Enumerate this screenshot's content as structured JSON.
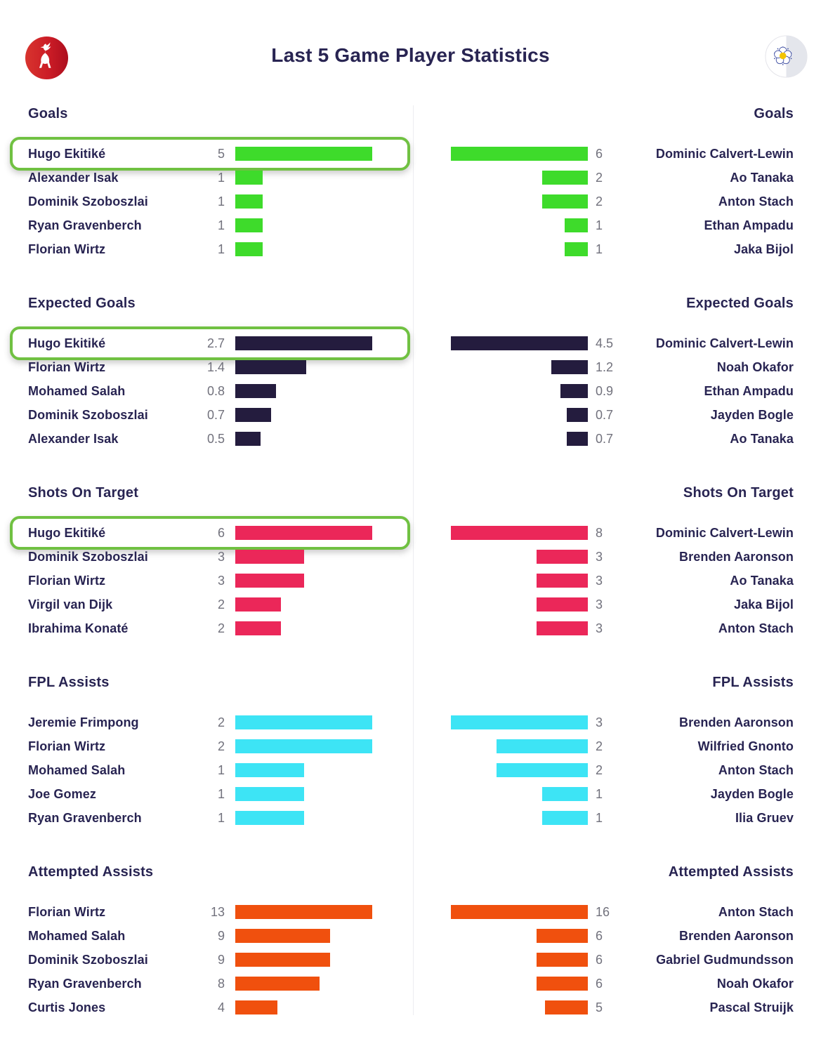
{
  "header": {
    "title": "Last 5 Game Player Statistics",
    "home_crest_icon": "liverpool-crest-icon",
    "away_crest_icon": "leeds-united-crest-icon"
  },
  "colors": {
    "goals_bar": "#3edb2b",
    "expected_goals_bar": "#241c3e",
    "shots_on_target_bar": "#eb2759",
    "fpl_assists_bar": "#3de4f5",
    "attempted_assists_bar": "#f0500e",
    "highlight_border": "#70c142",
    "name_text": "#282452",
    "value_text": "#71717c",
    "divider": "#ededf1"
  },
  "chart_data": [
    {
      "type": "bar",
      "title": "Goals",
      "bar_color": "#3edb2b",
      "left": [
        {
          "name": "Hugo Ekitiké",
          "value": 5,
          "highlight": true
        },
        {
          "name": "Alexander Isak",
          "value": 1
        },
        {
          "name": "Dominik Szoboszlai",
          "value": 1
        },
        {
          "name": "Ryan Gravenberch",
          "value": 1
        },
        {
          "name": "Florian Wirtz",
          "value": 1
        }
      ],
      "right": [
        {
          "name": "Dominic Calvert-Lewin",
          "value": 6
        },
        {
          "name": "Ao Tanaka",
          "value": 2
        },
        {
          "name": "Anton Stach",
          "value": 2
        },
        {
          "name": "Ethan Ampadu",
          "value": 1
        },
        {
          "name": "Jaka Bijol",
          "value": 1
        }
      ]
    },
    {
      "type": "bar",
      "title": "Expected Goals",
      "bar_color": "#241c3e",
      "left": [
        {
          "name": "Hugo Ekitiké",
          "value": 2.7,
          "highlight": true
        },
        {
          "name": "Florian Wirtz",
          "value": 1.4
        },
        {
          "name": "Mohamed Salah",
          "value": 0.8
        },
        {
          "name": "Dominik Szoboszlai",
          "value": 0.7
        },
        {
          "name": "Alexander Isak",
          "value": 0.5
        }
      ],
      "right": [
        {
          "name": "Dominic Calvert-Lewin",
          "value": 4.5
        },
        {
          "name": "Noah Okafor",
          "value": 1.2
        },
        {
          "name": "Ethan Ampadu",
          "value": 0.9
        },
        {
          "name": "Jayden Bogle",
          "value": 0.7
        },
        {
          "name": "Ao Tanaka",
          "value": 0.7
        }
      ]
    },
    {
      "type": "bar",
      "title": "Shots On Target",
      "bar_color": "#eb2759",
      "left": [
        {
          "name": "Hugo Ekitiké",
          "value": 6,
          "highlight": true
        },
        {
          "name": "Dominik Szoboszlai",
          "value": 3
        },
        {
          "name": "Florian Wirtz",
          "value": 3
        },
        {
          "name": "Virgil van Dijk",
          "value": 2
        },
        {
          "name": "Ibrahima Konaté",
          "value": 2
        }
      ],
      "right": [
        {
          "name": "Dominic Calvert-Lewin",
          "value": 8
        },
        {
          "name": "Brenden Aaronson",
          "value": 3
        },
        {
          "name": "Ao Tanaka",
          "value": 3
        },
        {
          "name": "Jaka Bijol",
          "value": 3
        },
        {
          "name": "Anton Stach",
          "value": 3
        }
      ]
    },
    {
      "type": "bar",
      "title": "FPL Assists",
      "bar_color": "#3de4f5",
      "left": [
        {
          "name": "Jeremie Frimpong",
          "value": 2
        },
        {
          "name": "Florian Wirtz",
          "value": 2
        },
        {
          "name": "Mohamed Salah",
          "value": 1
        },
        {
          "name": "Joe Gomez",
          "value": 1
        },
        {
          "name": "Ryan Gravenberch",
          "value": 1
        }
      ],
      "right": [
        {
          "name": "Brenden Aaronson",
          "value": 3
        },
        {
          "name": "Wilfried Gnonto",
          "value": 2
        },
        {
          "name": "Anton Stach",
          "value": 2
        },
        {
          "name": "Jayden Bogle",
          "value": 1
        },
        {
          "name": "Ilia Gruev",
          "value": 1
        }
      ]
    },
    {
      "type": "bar",
      "title": "Attempted Assists",
      "bar_color": "#f0500e",
      "left": [
        {
          "name": "Florian Wirtz",
          "value": 13
        },
        {
          "name": "Mohamed Salah",
          "value": 9
        },
        {
          "name": "Dominik Szoboszlai",
          "value": 9
        },
        {
          "name": "Ryan Gravenberch",
          "value": 8
        },
        {
          "name": "Curtis Jones",
          "value": 4
        }
      ],
      "right": [
        {
          "name": "Anton Stach",
          "value": 16
        },
        {
          "name": "Brenden Aaronson",
          "value": 6
        },
        {
          "name": "Gabriel Gudmundsson",
          "value": 6
        },
        {
          "name": "Noah Okafor",
          "value": 6
        },
        {
          "name": "Pascal Struijk",
          "value": 5
        }
      ]
    }
  ]
}
